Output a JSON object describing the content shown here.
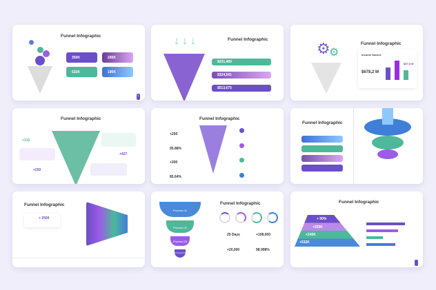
{
  "slide_title": "Funnel Infographic",
  "colors": {
    "purple": "#6b4fc8",
    "violet": "#9b5de5",
    "teal": "#4db89a",
    "blue": "#3f7fd8",
    "background": "#efeefa"
  },
  "slide1": {
    "stats": [
      "350K",
      "245K",
      "532K",
      "190K"
    ],
    "page": "1"
  },
  "slide2": {
    "rows": [
      "$231,489",
      "$324,541",
      "$513,675"
    ]
  },
  "slide3": {
    "chart_title": "Income Source",
    "main_value": "$678,2 M",
    "side_value": "$57,8 M"
  },
  "slide4": {
    "values": [
      "+315",
      "+427",
      "+250"
    ]
  },
  "slide5": {
    "values": [
      "+250",
      "95.88%",
      "+300",
      "85.64%"
    ]
  },
  "slide7": {
    "value": "+ 2500"
  },
  "slide8": {
    "processes": [
      "Process 01",
      "Process 02",
      "Process 03",
      "Process 04"
    ],
    "stats": [
      "25 Days",
      "+108,000",
      "+20,000",
      "98.998%"
    ]
  },
  "slide9": {
    "levels": [
      "+ 90%",
      "+350K",
      "+245K",
      "+532K"
    ]
  }
}
